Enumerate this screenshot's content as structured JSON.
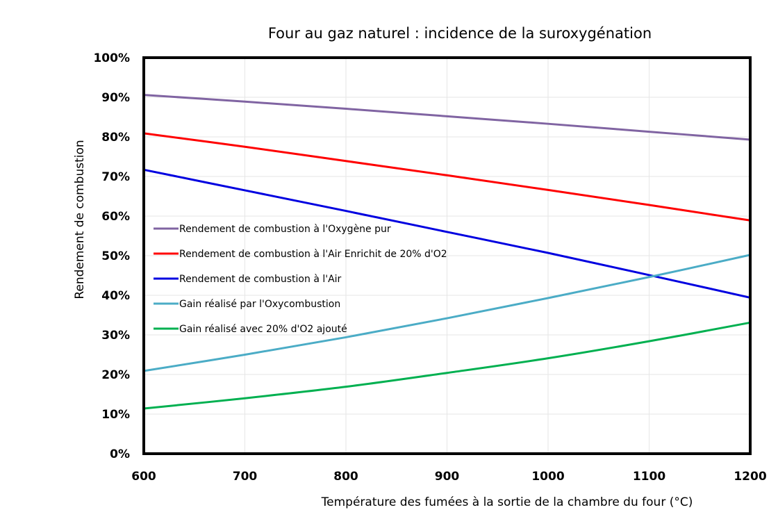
{
  "chart_data": {
    "type": "line",
    "title": "Four au gaz naturel : incidence de la suroxygénation",
    "xlabel": "Température des fumées à la sortie de la chambre du four (°C)",
    "ylabel": "Rendement de combustion",
    "xlim": [
      600,
      1200
    ],
    "ylim": [
      0,
      100
    ],
    "x_ticks": [
      600,
      700,
      800,
      900,
      1000,
      1100,
      1200
    ],
    "x_tick_labels": [
      "600",
      "700",
      "800",
      "900",
      "1000",
      "1100",
      "1200"
    ],
    "y_ticks": [
      0,
      10,
      20,
      30,
      40,
      50,
      60,
      70,
      80,
      90,
      100
    ],
    "y_tick_labels": [
      "0%",
      "10%",
      "20%",
      "30%",
      "40%",
      "50%",
      "60%",
      "70%",
      "80%",
      "90%",
      "100%"
    ],
    "grid": true,
    "legend_position": "center-left",
    "x": [
      600,
      700,
      800,
      900,
      1000,
      1100,
      1200
    ],
    "series": [
      {
        "name": "Rendement de combustion à l'Oxygène pur",
        "color": "#8064a2",
        "values": [
          90.6,
          88.9,
          87.1,
          85.2,
          83.3,
          81.3,
          79.3
        ]
      },
      {
        "name": "Rendement de combustion à l'Air Enrichit de 20% d'O2",
        "color": "#ff0000",
        "values": [
          80.9,
          77.5,
          73.9,
          70.3,
          66.6,
          62.8,
          58.9
        ]
      },
      {
        "name": "Rendement de combustion à l'Air",
        "color": "#0000e0",
        "values": [
          71.7,
          66.5,
          61.3,
          56.0,
          50.7,
          45.1,
          39.4
        ]
      },
      {
        "name": "Gain réalisé par l'Oxycombustion",
        "color": "#4bacc6",
        "values": [
          20.9,
          25.0,
          29.4,
          34.2,
          39.3,
          44.6,
          50.2
        ]
      },
      {
        "name": "Gain réalisé avec 20% d'O2 ajouté",
        "color": "#00b050",
        "values": [
          11.4,
          14.0,
          16.9,
          20.4,
          24.1,
          28.4,
          33.1
        ]
      }
    ]
  }
}
